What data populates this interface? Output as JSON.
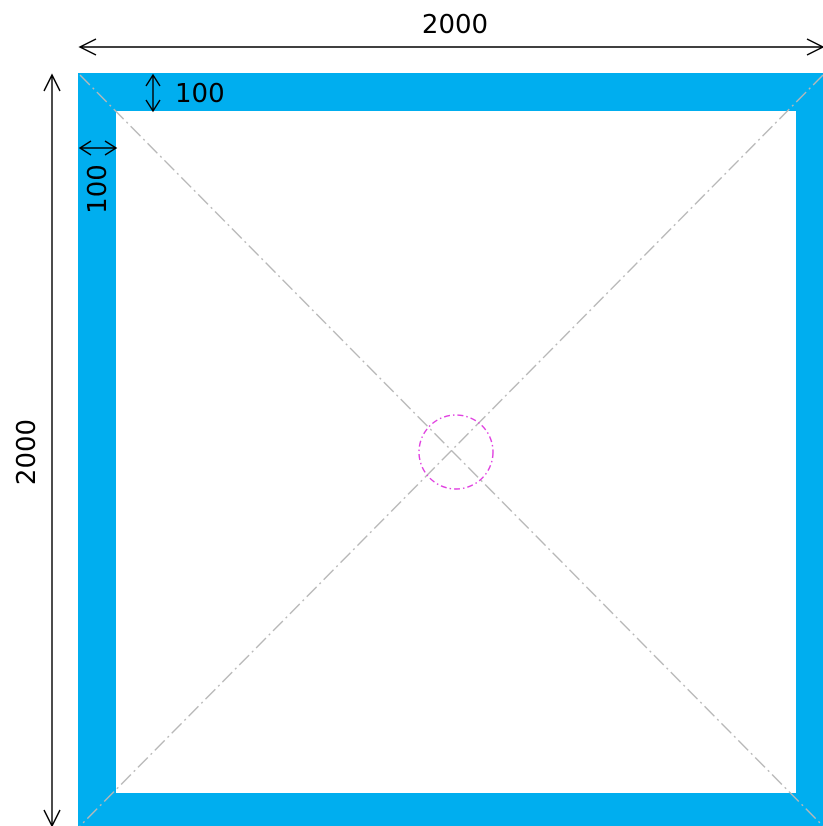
{
  "drawing": {
    "overall_width_label": "2000",
    "overall_height_label": "2000",
    "top_border_label": "100",
    "left_border_label": "100",
    "colors": {
      "border_fill": "#00AEEF",
      "inner_fill": "#FFFFFF",
      "dimension_line": "#000000",
      "diagonal_line": "#B8B8B8",
      "center_marker": "#E040E0"
    },
    "center_marker_shape": "dash-dot circle",
    "diagonal_style": "dash-dot"
  }
}
